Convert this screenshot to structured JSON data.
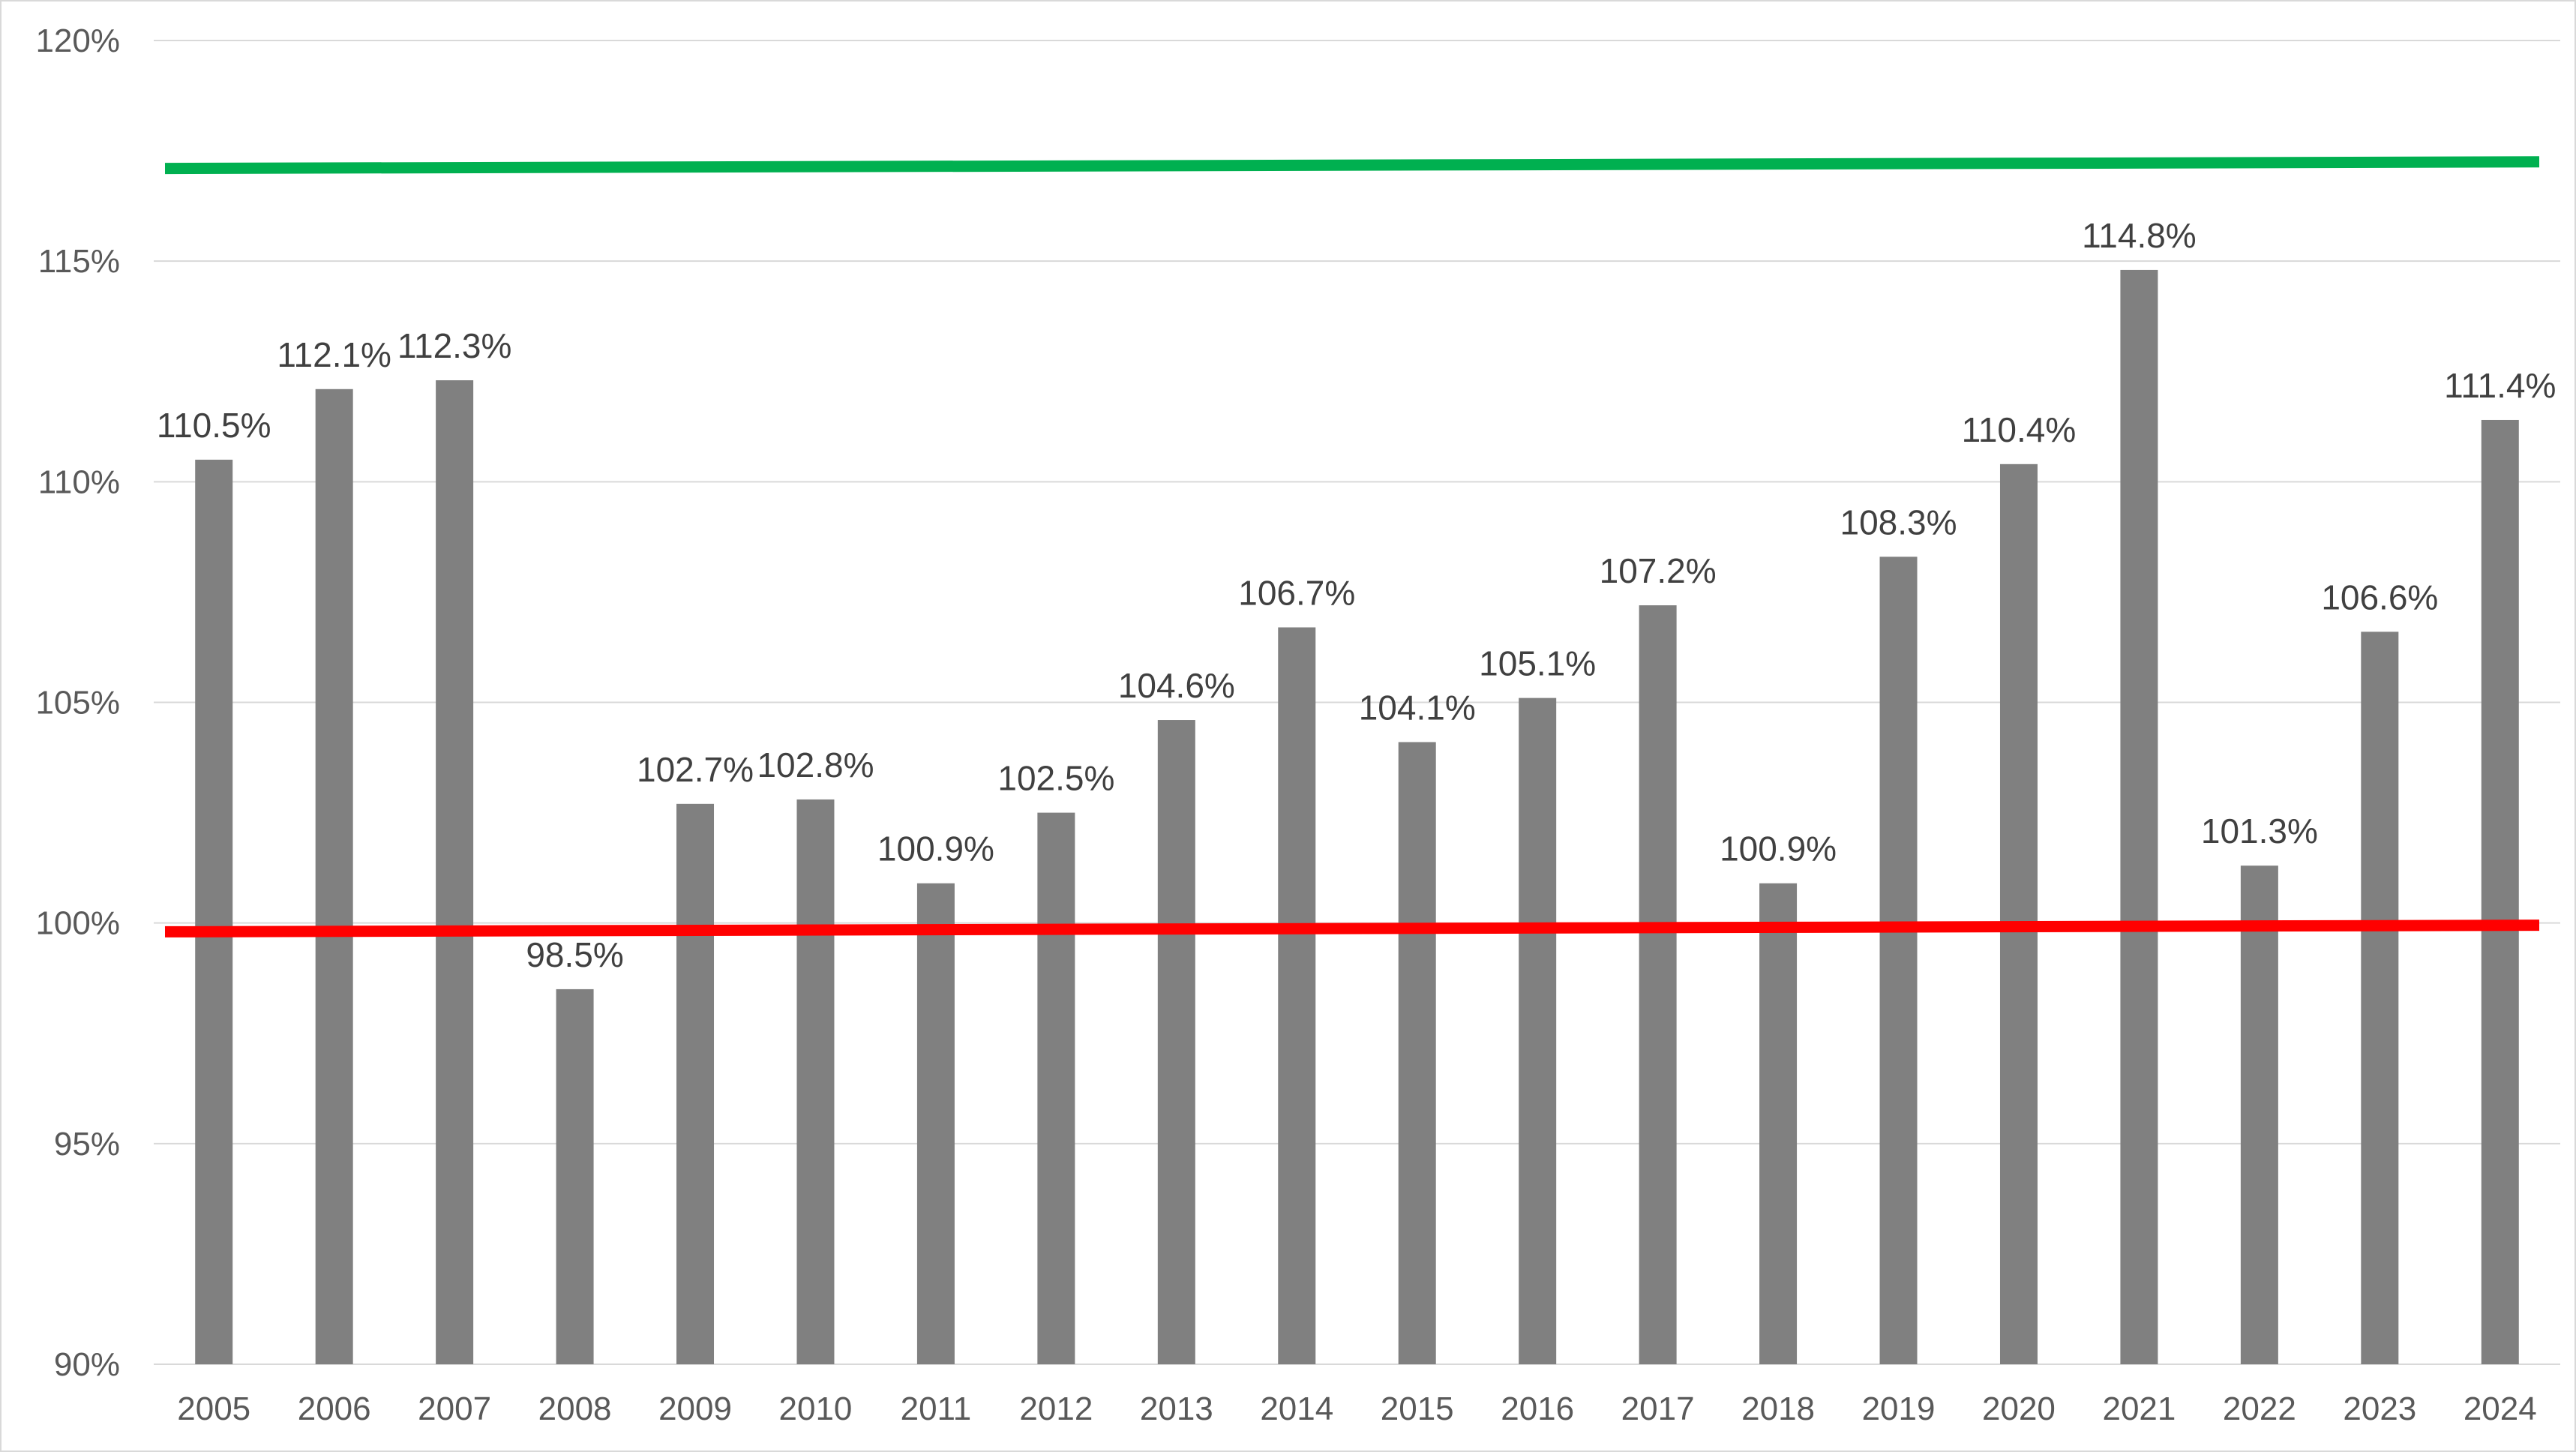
{
  "chart_data": {
    "type": "bar",
    "title": "",
    "xlabel": "",
    "ylabel": "",
    "categories": [
      "2005",
      "2006",
      "2007",
      "2008",
      "2009",
      "2010",
      "2011",
      "2012",
      "2013",
      "2014",
      "2015",
      "2016",
      "2017",
      "2018",
      "2019",
      "2020",
      "2021",
      "2022",
      "2023",
      "2024"
    ],
    "values": [
      110.5,
      112.1,
      112.3,
      98.5,
      102.7,
      102.8,
      100.9,
      102.5,
      104.6,
      106.7,
      104.1,
      105.1,
      107.2,
      100.9,
      108.3,
      110.4,
      114.8,
      101.3,
      106.6,
      111.4
    ],
    "data_labels": [
      "110.5%",
      "112.1%",
      "112.3%",
      "98.5%",
      "102.7%",
      "102.8%",
      "100.9%",
      "102.5%",
      "104.6%",
      "106.7%",
      "104.1%",
      "105.1%",
      "107.2%",
      "100.9%",
      "108.3%",
      "110.4%",
      "114.8%",
      "101.3%",
      "106.6%",
      "111.4%"
    ],
    "ylim": [
      90,
      120
    ],
    "y_ticks": [
      90,
      95,
      100,
      105,
      110,
      115,
      120
    ],
    "y_tick_labels": [
      "90%",
      "95%",
      "100%",
      "105%",
      "110%",
      "115%",
      "120%"
    ],
    "grid": true,
    "legend": "none",
    "reference_lines": [
      {
        "color": "#00b050",
        "y_start": 117.1,
        "y_end": 117.25
      },
      {
        "color": "#ff0000",
        "y_start": 99.8,
        "y_end": 99.95
      }
    ],
    "colors": {
      "bar": "#808080",
      "grid": "#d9d9d9",
      "tick_text": "#595959",
      "label_text": "#404040"
    }
  }
}
